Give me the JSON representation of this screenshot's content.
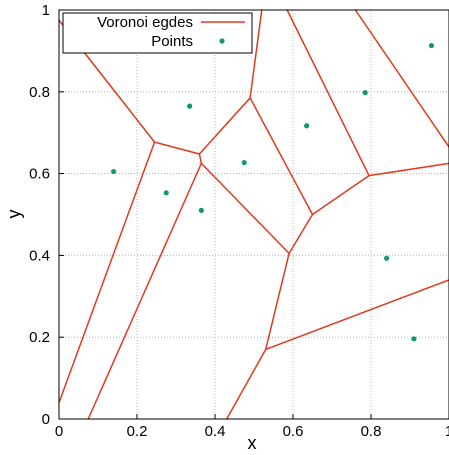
{
  "chart_data": {
    "type": "scatter",
    "xlabel": "x",
    "ylabel": "y",
    "xlim": [
      0,
      1
    ],
    "ylim": [
      0,
      1
    ],
    "x_ticks": [
      "0",
      "0.2",
      "0.4",
      "0.6",
      "0.8",
      "1"
    ],
    "y_ticks": [
      "0",
      "0.2",
      "0.4",
      "0.6",
      "0.8",
      "1"
    ],
    "grid": true,
    "legend_position": "top-left",
    "colors": {
      "edges": "#e03a1e",
      "points": "#119966"
    },
    "series": [
      {
        "name": "Voronoi egdes",
        "kind": "segments",
        "segments": [
          [
            [
              0.0,
              0.975
            ],
            [
              0.245,
              0.677
            ]
          ],
          [
            [
              0.245,
              0.677
            ],
            [
              0.0,
              0.04
            ]
          ],
          [
            [
              0.245,
              0.677
            ],
            [
              0.36,
              0.648
            ]
          ],
          [
            [
              0.36,
              0.648
            ],
            [
              0.49,
              0.785
            ]
          ],
          [
            [
              0.49,
              0.785
            ],
            [
              0.52,
              1.0
            ]
          ],
          [
            [
              0.36,
              0.648
            ],
            [
              0.365,
              0.625
            ]
          ],
          [
            [
              0.365,
              0.625
            ],
            [
              0.075,
              0.0
            ]
          ],
          [
            [
              0.365,
              0.625
            ],
            [
              0.59,
              0.405
            ]
          ],
          [
            [
              0.59,
              0.405
            ],
            [
              0.65,
              0.5
            ]
          ],
          [
            [
              0.65,
              0.5
            ],
            [
              0.49,
              0.785
            ]
          ],
          [
            [
              0.59,
              0.405
            ],
            [
              0.53,
              0.17
            ]
          ],
          [
            [
              0.53,
              0.17
            ],
            [
              0.43,
              0.0
            ]
          ],
          [
            [
              0.53,
              0.17
            ],
            [
              1.0,
              0.34
            ]
          ],
          [
            [
              0.65,
              0.5
            ],
            [
              0.795,
              0.595
            ]
          ],
          [
            [
              0.795,
              0.595
            ],
            [
              1.0,
              0.625
            ]
          ],
          [
            [
              0.795,
              0.595
            ],
            [
              0.585,
              1.0
            ]
          ],
          [
            [
              0.76,
              1.0
            ],
            [
              1.0,
              0.665
            ]
          ]
        ]
      },
      {
        "name": "Points",
        "kind": "points",
        "x": [
          0.14,
          0.275,
          0.335,
          0.365,
          0.475,
          0.635,
          0.785,
          0.84,
          0.91,
          0.955
        ],
        "y": [
          0.605,
          0.553,
          0.765,
          0.51,
          0.627,
          0.717,
          0.798,
          0.393,
          0.196,
          0.913
        ]
      }
    ]
  }
}
